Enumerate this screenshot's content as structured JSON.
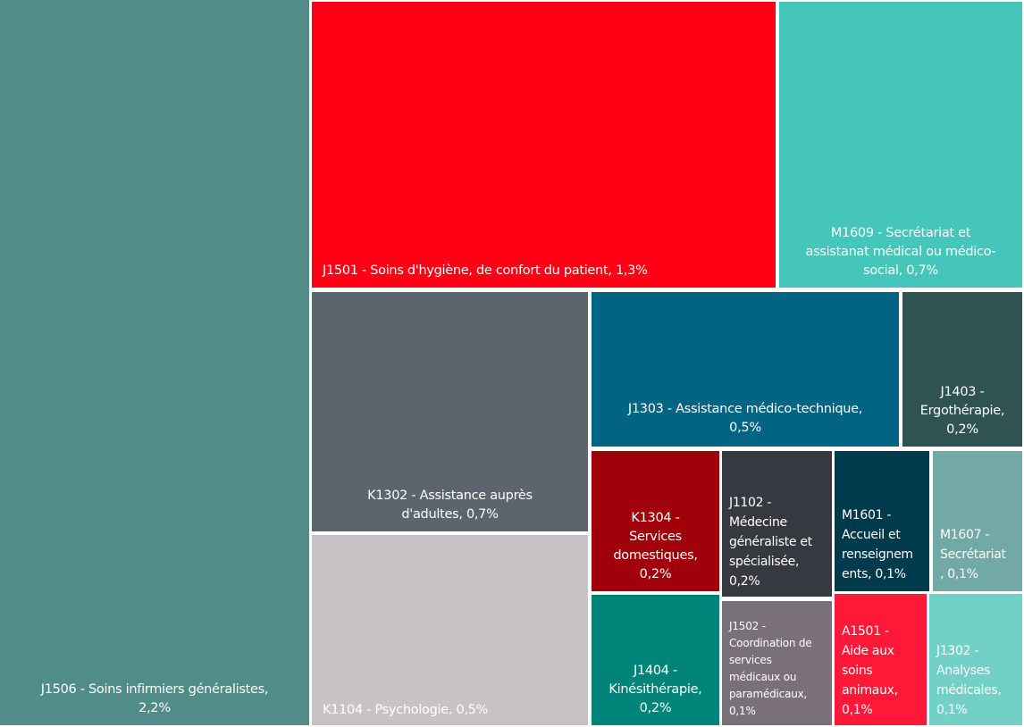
{
  "chart_data": {
    "type": "treemap",
    "title": "",
    "unit": "%",
    "items": [
      {
        "code": "J1506",
        "name": "Soins infirmiers généralistes",
        "value": 2.2,
        "label": "J1506 - Soins infirmiers généralistes,\n2,2%",
        "color": "#518C89"
      },
      {
        "code": "J1501",
        "name": "Soins d'hygiène, de confort du patient",
        "value": 1.3,
        "label": "J1501 - Soins d'hygiène, de confort du patient, 1,3%",
        "color": "#FF0014"
      },
      {
        "code": "M1609",
        "name": "Secrétariat et assistanat médical ou médico-social",
        "value": 0.7,
        "label": "M1609 - Secrétariat et\nassistanat médical ou médico-\nsocial, 0,7%",
        "color": "#45C6BA"
      },
      {
        "code": "K1302",
        "name": "Assistance auprès d'adultes",
        "value": 0.7,
        "label": "K1302 - Assistance auprès\nd'adultes, 0,7%",
        "color": "#5C646D"
      },
      {
        "code": "K1104",
        "name": "Psychologie",
        "value": 0.5,
        "label": "K1104 - Psychologie, 0,5%",
        "color": "#C8C2C7"
      },
      {
        "code": "J1303",
        "name": "Assistance médico-technique",
        "value": 0.5,
        "label": "J1303 - Assistance médico-technique,\n0,5%",
        "color": "#006482"
      },
      {
        "code": "J1403",
        "name": "Ergothérapie",
        "value": 0.2,
        "label": "J1403 -\nErgothérapie,\n0,2%",
        "color": "#2E5352"
      },
      {
        "code": "K1304",
        "name": "Services domestiques",
        "value": 0.2,
        "label": "K1304 -\nServices\ndomestiques,\n0,2%",
        "color": "#A00009"
      },
      {
        "code": "J1102",
        "name": "Médecine généraliste et spécialisée",
        "value": 0.2,
        "label": "J1102 -\nMédecine\ngénéraliste et\nspécialisée,\n0,2%",
        "color": "#363A40"
      },
      {
        "code": "M1601",
        "name": "Accueil et renseignements",
        "value": 0.1,
        "label": "M1601 -\nAccueil et\nrenseignem\nents, 0,1%",
        "color": "#003A4D"
      },
      {
        "code": "M1607",
        "name": "Secrétariat",
        "value": 0.1,
        "label": "M1607 -\nSecrétariat\n, 0,1%",
        "color": "#72A8A5"
      },
      {
        "code": "J1404",
        "name": "Kinésithérapie",
        "value": 0.2,
        "label": "J1404 -\nKinésithérapie,\n0,2%",
        "color": "#008479"
      },
      {
        "code": "J1502",
        "name": "Coordination de services médicaux ou paramédicaux",
        "value": 0.1,
        "label": "J1502 -\nCoordination de\nservices\nmédicaux ou\nparamédicaux,\n0,1%",
        "color": "#7A7178"
      },
      {
        "code": "A1501",
        "name": "Aide aux soins animaux",
        "value": 0.1,
        "label": "A1501 -\nAide aux\nsoins\nanimaux,\n0,1%",
        "color": "#FF1838"
      },
      {
        "code": "J1302",
        "name": "Analyses médicales",
        "value": 0.1,
        "label": "J1302 -\nAnalyses\nmédicales,\n0,1%",
        "color": "#72D1C6"
      }
    ]
  }
}
